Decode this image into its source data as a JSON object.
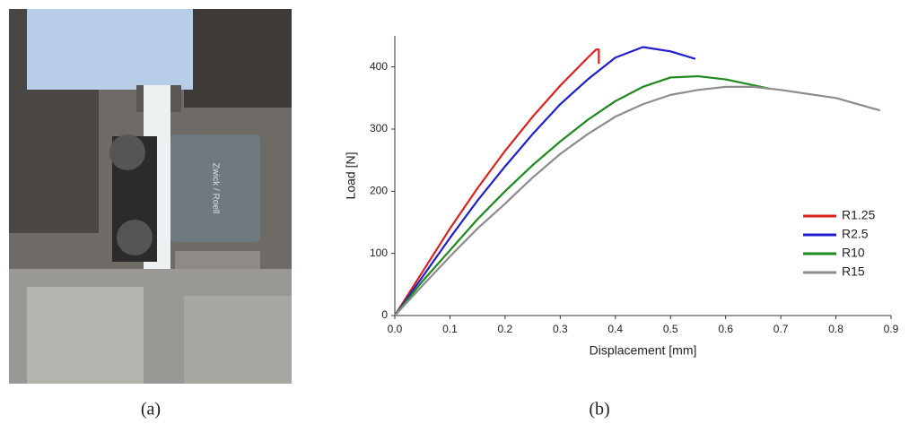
{
  "photo": {
    "device_label": "Zwick / Roell"
  },
  "captions": [
    "(a)",
    "(b)"
  ],
  "chart_data": {
    "type": "line",
    "x_label": "Displacement [mm]",
    "y_label": "Load [N]",
    "xlim": [
      0,
      0.9
    ],
    "ylim": [
      0,
      450
    ],
    "xticks": [
      {
        "value": 0,
        "label": "0.0"
      },
      0.1,
      0.2,
      0.3,
      0.4,
      0.5,
      0.6,
      0.7,
      0.8,
      0.9
    ],
    "yticks": [
      0,
      100,
      200,
      300,
      400
    ],
    "grid": false,
    "legend": "right",
    "series": [
      {
        "name": "R1.25",
        "color": "#e0201b",
        "x": [
          0,
          0.05,
          0.1,
          0.15,
          0.2,
          0.25,
          0.3,
          0.35,
          0.365,
          0.37,
          0.37
        ],
        "values": [
          0,
          70,
          140,
          205,
          265,
          320,
          370,
          415,
          428,
          428,
          405
        ]
      },
      {
        "name": "R2.5",
        "color": "#1f1fd0",
        "x": [
          0,
          0.05,
          0.1,
          0.15,
          0.2,
          0.25,
          0.3,
          0.35,
          0.4,
          0.45,
          0.5,
          0.545
        ],
        "values": [
          0,
          62,
          125,
          185,
          240,
          292,
          340,
          380,
          415,
          432,
          425,
          413
        ]
      },
      {
        "name": "R10",
        "color": "#1c8a1c",
        "x": [
          0,
          0.05,
          0.1,
          0.15,
          0.2,
          0.25,
          0.3,
          0.35,
          0.4,
          0.45,
          0.5,
          0.55,
          0.6,
          0.68
        ],
        "values": [
          0,
          55,
          105,
          155,
          200,
          242,
          280,
          315,
          345,
          368,
          383,
          385,
          380,
          365
        ]
      },
      {
        "name": "R15",
        "color": "#8c8c8c",
        "x": [
          0,
          0.05,
          0.1,
          0.15,
          0.2,
          0.25,
          0.3,
          0.35,
          0.4,
          0.45,
          0.5,
          0.55,
          0.6,
          0.65,
          0.7,
          0.8,
          0.88
        ],
        "values": [
          0,
          48,
          95,
          140,
          180,
          222,
          260,
          292,
          320,
          340,
          355,
          363,
          368,
          368,
          363,
          350,
          330
        ]
      }
    ]
  }
}
